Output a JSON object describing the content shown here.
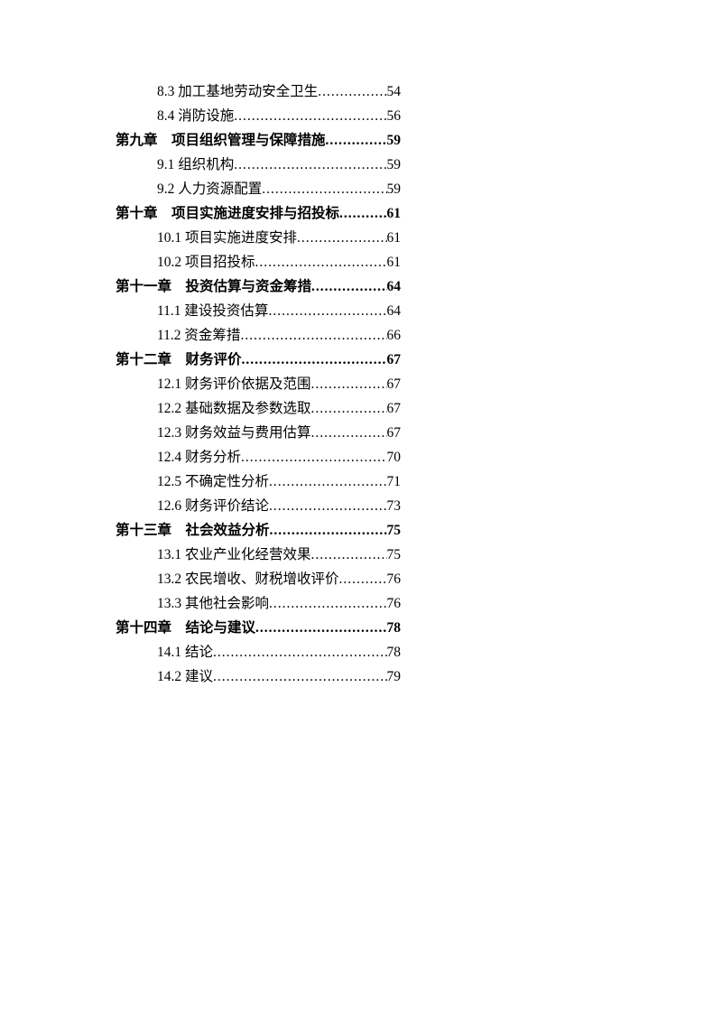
{
  "background_color": "#ffffff",
  "text_color": "#000000",
  "font_family": "SimSun",
  "base_fontsize": 15.5,
  "line_height": 27,
  "container_width": 316,
  "section_indent": 46,
  "entries": [
    {
      "type": "section",
      "label": "8.3 加工基地劳动安全卫生",
      "page": "54"
    },
    {
      "type": "section",
      "label": "8.4 消防设施",
      "page": "56"
    },
    {
      "type": "chapter",
      "label": "第九章　项目组织管理与保障措施",
      "page": "59"
    },
    {
      "type": "section",
      "label": "9.1 组织机构",
      "page": "59"
    },
    {
      "type": "section",
      "label": "9.2 人力资源配置",
      "page": "59"
    },
    {
      "type": "chapter",
      "label": "第十章　项目实施进度安排与招投标",
      "page": "61"
    },
    {
      "type": "section",
      "label": "10.1  项目实施进度安排",
      "page": "61"
    },
    {
      "type": "section",
      "label": "10.2 项目招投标",
      "page": "61"
    },
    {
      "type": "chapter",
      "label": "第十一章　投资估算与资金筹措",
      "page": "64"
    },
    {
      "type": "section",
      "label": "11.1 建设投资估算",
      "page": "64"
    },
    {
      "type": "section",
      "label": "11.2 资金筹措",
      "page": "66"
    },
    {
      "type": "chapter",
      "label": "第十二章　财务评价",
      "page": "67"
    },
    {
      "type": "section",
      "label": "12.1 财务评价依据及范围",
      "page": "67"
    },
    {
      "type": "section",
      "label": "12.2 基础数据及参数选取",
      "page": "67"
    },
    {
      "type": "section",
      "label": "12.3 财务效益与费用估算",
      "page": "67"
    },
    {
      "type": "section",
      "label": "12.4 财务分析",
      "page": "70"
    },
    {
      "type": "section",
      "label": "12.5 不确定性分析",
      "page": "71"
    },
    {
      "type": "section",
      "label": "12.6 财务评价结论",
      "page": "73"
    },
    {
      "type": "chapter",
      "label": "第十三章　社会效益分析",
      "page": "75"
    },
    {
      "type": "section",
      "label": "13.1 农业产业化经营效果",
      "page": "75"
    },
    {
      "type": "section",
      "label": "13.2  农民增收、财税增收评价 ",
      "page": "76"
    },
    {
      "type": "section",
      "label": "13.3 其他社会影响",
      "page": "76"
    },
    {
      "type": "chapter",
      "label": "第十四章　结论与建议",
      "page": "78"
    },
    {
      "type": "section",
      "label": "14.1 结论",
      "page": "78"
    },
    {
      "type": "section",
      "label": "14.2 建议",
      "page": "79"
    }
  ]
}
